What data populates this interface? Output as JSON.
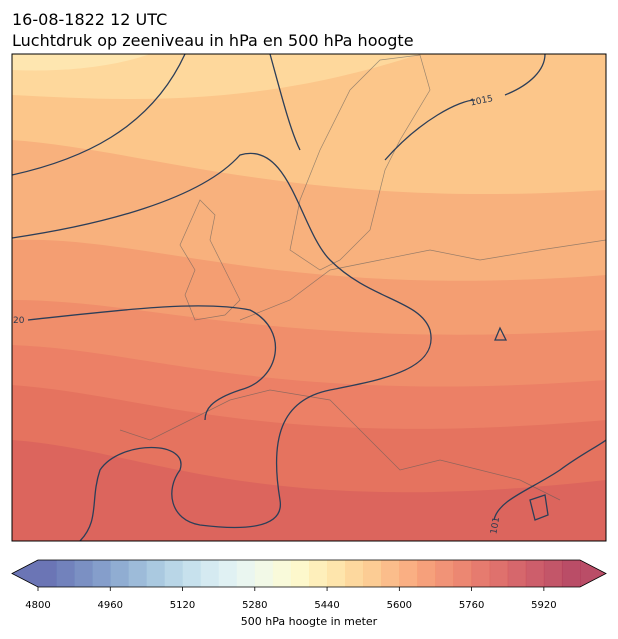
{
  "title": "16-08-1822 12 UTC",
  "subtitle": "Luchtdruk op zeeniveau in hPa en 500 hPa hoogte",
  "map": {
    "contour_labels": [
      "1015",
      "20",
      "101"
    ]
  },
  "colorbar": {
    "label": "500 hPa hoogte in meter",
    "lim": [
      4800,
      6000
    ],
    "ticks": [
      4800,
      4960,
      5120,
      5280,
      5440,
      5600,
      5760,
      5920
    ],
    "colors": [
      "#5b66ad",
      "#6374b5",
      "#6d84bd",
      "#7893c5",
      "#84a4cd",
      "#92b4d5",
      "#a1c3dd",
      "#b1d1e4",
      "#c1deeb",
      "#d0e8f0",
      "#ddf0f2",
      "#e8f5ee",
      "#f1f8e4",
      "#f8fad6",
      "#fdf7c6",
      "#feedb4",
      "#fee2a3",
      "#fdd494",
      "#fcc688",
      "#fbb67e",
      "#f9a675",
      "#f5966d",
      "#f08768",
      "#ea7a63",
      "#e36d5f",
      "#db625d",
      "#d2575c",
      "#c84d5b",
      "#bd4459",
      "#b23a57"
    ]
  }
}
